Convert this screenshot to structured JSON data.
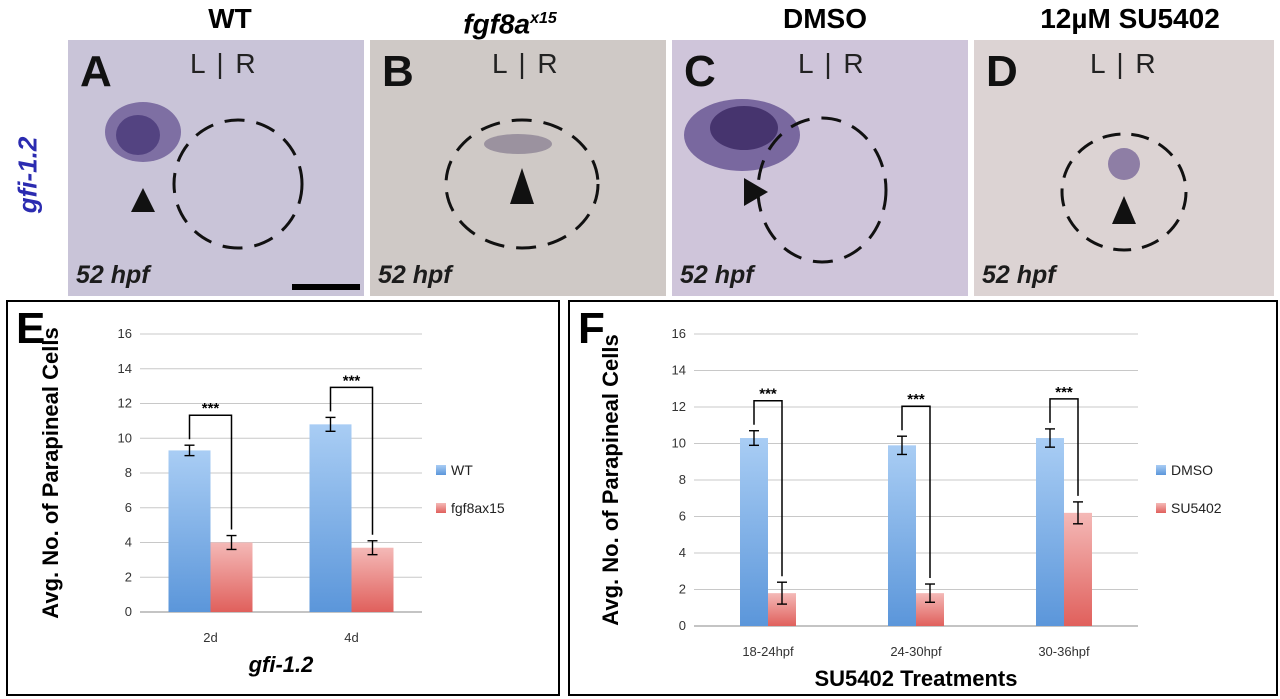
{
  "column_titles": {
    "a": "WT",
    "b_base": "fgf8a",
    "b_sup": "x15",
    "c": "DMSO",
    "d": "12µM SU5402"
  },
  "row_label": "gfi-1.2",
  "panels": [
    {
      "letter": "A",
      "lr": "L | R",
      "stage": "52 hpf",
      "bg": "#c9c4d8"
    },
    {
      "letter": "B",
      "lr": "L | R",
      "stage": "52 hpf",
      "bg": "#cfc9c6"
    },
    {
      "letter": "C",
      "lr": "L | R",
      "stage": "52 hpf",
      "bg": "#cfc5da"
    },
    {
      "letter": "D",
      "lr": "L | R",
      "stage": "52 hpf",
      "bg": "#dcd3d3"
    }
  ],
  "colors": {
    "series1_top": "#a9cdf4",
    "series1_bottom": "#5b96da",
    "series2_top": "#f4b9b7",
    "series2_bottom": "#e0605c",
    "stain": "#3f2a78",
    "row_label": "#2b2bb0"
  },
  "chart_data": [
    {
      "panel": "E",
      "type": "bar",
      "categories": [
        "2d",
        "4d"
      ],
      "series": [
        {
          "name": "WT",
          "values": [
            9.3,
            10.8
          ],
          "errors": [
            0.3,
            0.4
          ]
        },
        {
          "name": "fgf8ax15",
          "values": [
            4.0,
            3.7
          ],
          "errors": [
            0.4,
            0.4
          ]
        }
      ],
      "significance": [
        "***",
        "***"
      ],
      "xlabel": "gfi-1.2",
      "ylabel": "Avg. No. of Parapineal Cells",
      "ylim": [
        0,
        16
      ],
      "yticks": [
        0,
        2,
        4,
        6,
        8,
        10,
        12,
        14,
        16
      ],
      "grid": true,
      "legend": "right"
    },
    {
      "panel": "F",
      "type": "bar",
      "categories": [
        "18-24hpf",
        "24-30hpf",
        "30-36hpf"
      ],
      "series": [
        {
          "name": "DMSO",
          "values": [
            10.3,
            9.9,
            10.3
          ],
          "errors": [
            0.4,
            0.5,
            0.5
          ]
        },
        {
          "name": "SU5402",
          "values": [
            1.8,
            1.8,
            6.2
          ],
          "errors": [
            0.6,
            0.5,
            0.6
          ]
        }
      ],
      "significance": [
        "***",
        "***",
        "***"
      ],
      "xlabel": "SU5402 Treatments",
      "ylabel": "Avg. No. of Parapineal Cells",
      "ylim": [
        0,
        16
      ],
      "yticks": [
        0,
        2,
        4,
        6,
        8,
        10,
        12,
        14,
        16
      ],
      "grid": true,
      "legend": "right"
    }
  ]
}
